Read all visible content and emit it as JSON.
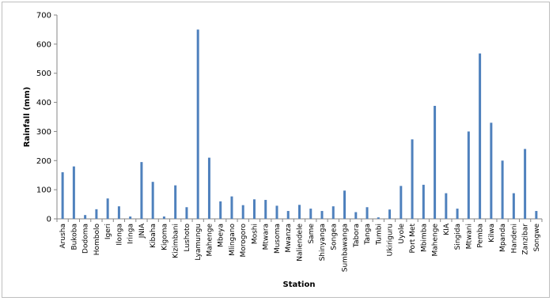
{
  "chart_data": {
    "type": "bar",
    "title": "",
    "xlabel": "Station",
    "ylabel": "Rainfall (mm)",
    "ylim": [
      0,
      700
    ],
    "yticks": [
      0,
      100,
      200,
      300,
      400,
      500,
      600,
      700
    ],
    "grid": false,
    "legend": "none",
    "bar_color": "#4f81bd",
    "categories": [
      "Arusha",
      "Bukoba",
      "Dodoma",
      "Hombolo",
      "Igeri",
      "Ilonga",
      "Iringa",
      "JNIA",
      "Kibaha",
      "Kigoma",
      "Kizimbani",
      "Lushoto",
      "Lyamungu",
      "Mahenge",
      "Mbeya",
      "Mlingano",
      "Morogoro",
      "Moshi",
      "Mtwara",
      "Musoma",
      "Mwanza",
      "Naliendele",
      "Same",
      "Shinyanga",
      "Songea",
      "Sumbawanga",
      "Tabora",
      "Tanga",
      "Tumbi",
      "Ukiriguru",
      "Uyole",
      "Port Met",
      "Mbimba",
      "Mahenge",
      "KIA",
      "Singida",
      "Mtwani",
      "Pemba",
      "Kilwa",
      "Mpanda",
      "Handeni",
      "Zanzibar",
      "Songwe"
    ],
    "values": [
      160,
      180,
      13,
      33,
      70,
      43,
      8,
      195,
      127,
      8,
      115,
      40,
      650,
      210,
      60,
      77,
      47,
      67,
      65,
      45,
      27,
      48,
      35,
      27,
      43,
      97,
      23,
      40,
      5,
      32,
      113,
      273,
      117,
      388,
      88,
      35,
      300,
      568,
      330,
      200,
      88,
      240,
      27
    ]
  }
}
